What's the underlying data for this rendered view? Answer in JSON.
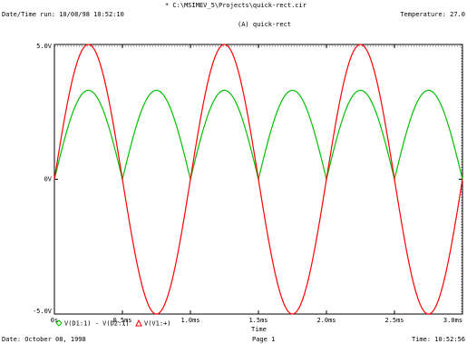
{
  "header": {
    "file_path": "* C:\\MSIMEV_5\\Projects\\quick-rect.cir",
    "date_time": "Date/Time run: 10/08/98 10:52:10",
    "temperature": "Temperature: 27.0",
    "plot_title": "(A) quick-rect"
  },
  "footer": {
    "date": "Date: October 08, 1998",
    "page": "Page 1",
    "time": "Time: 10:52:56"
  },
  "chart_data": {
    "type": "line",
    "xlabel": "Time",
    "x_ticks": [
      "0s",
      "0.5ms",
      "1.0ms",
      "1.5ms",
      "2.0ms",
      "2.5ms",
      "3.0ms"
    ],
    "y_ticks": [
      "5.0V",
      "0V",
      "-5.0V"
    ],
    "xlim": [
      0,
      3.0
    ],
    "ylim": [
      -5.0,
      5.0
    ],
    "x_unit": "ms",
    "grid": false,
    "legend": {
      "placement": "bottom-left",
      "entries": [
        {
          "label": "V(D1:1) - V(D2:1)",
          "color": "#00c000",
          "marker": "diamond"
        },
        {
          "label": "V(V1:+)",
          "color": "#ff0000",
          "marker": "triangle"
        }
      ]
    },
    "series": [
      {
        "color": "#00c000",
        "description": "full-wave rectified sine, frequency 1 kHz",
        "amplitude": 3.3,
        "frequency_khz": 1.0,
        "rectified": true
      },
      {
        "color": "#ff0000",
        "description": "sine source, frequency 1 kHz",
        "amplitude": 5.0,
        "frequency_khz": 1.0,
        "rectified": false
      }
    ]
  }
}
